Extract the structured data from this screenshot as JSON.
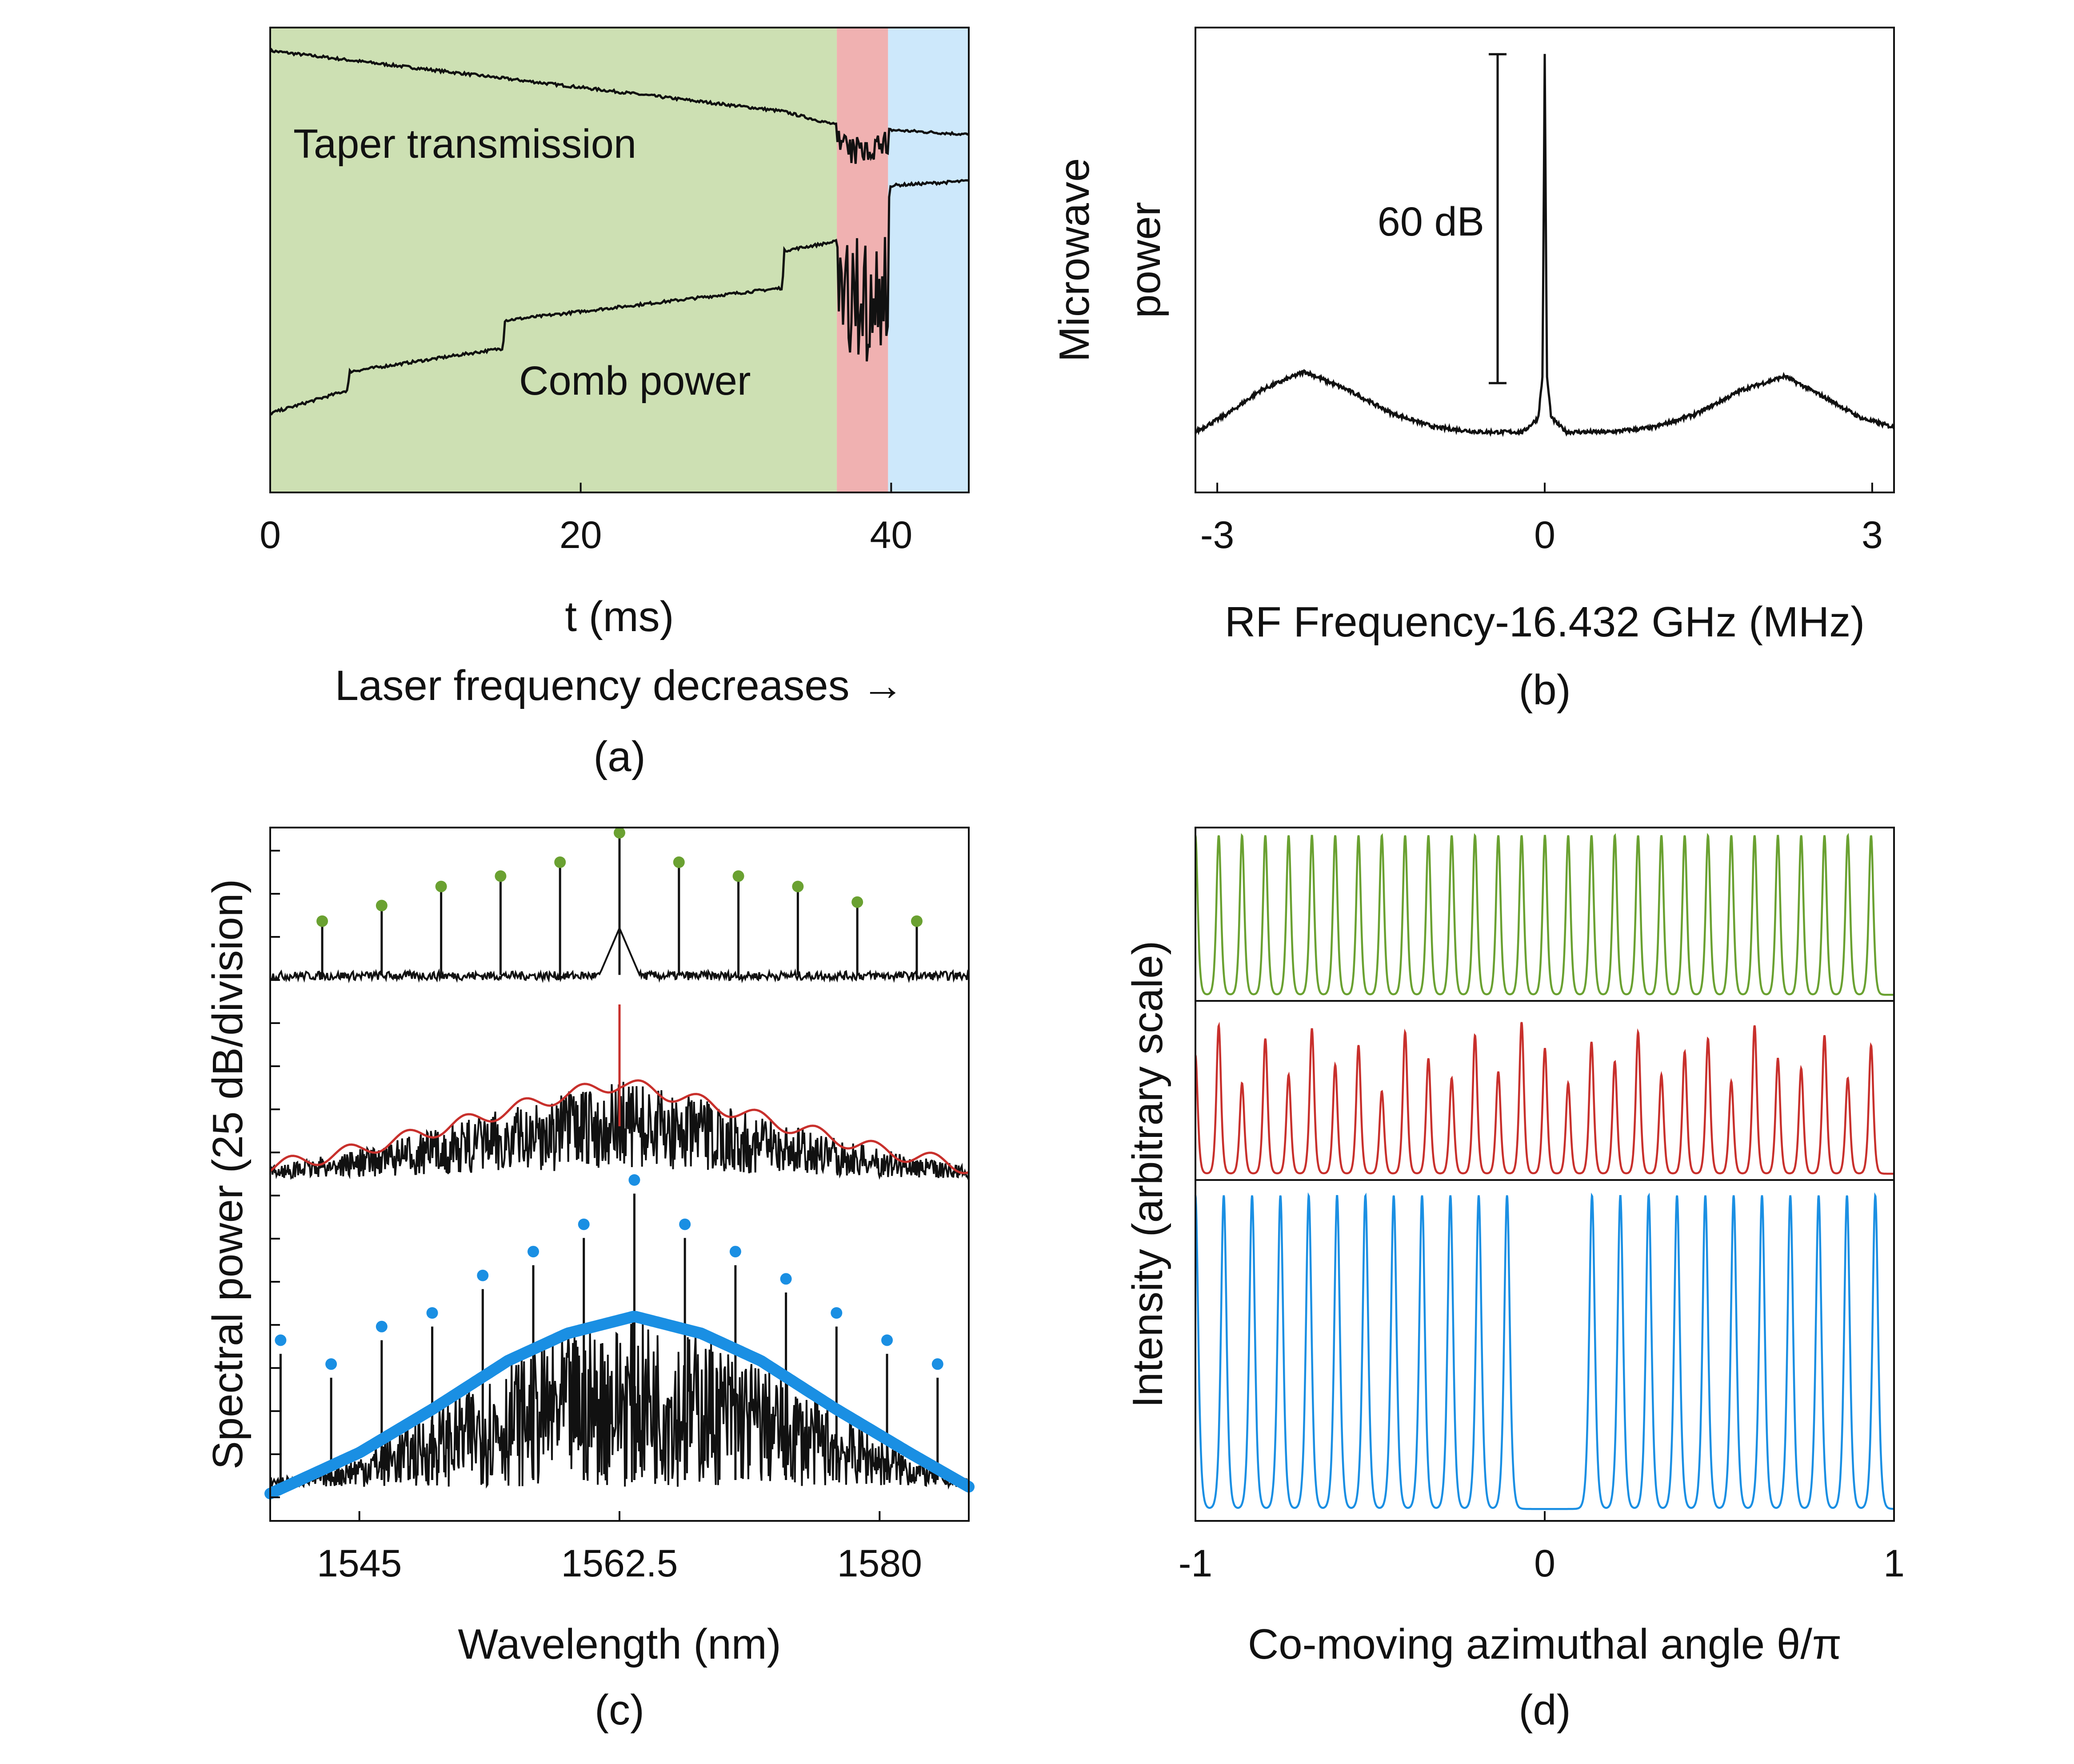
{
  "colors": {
    "green": "#6aa131",
    "red": "#c8302c",
    "blue": "#1a8fe3",
    "black": "#111111",
    "band_green": "#cde0b3",
    "band_red": "#f0b1b1",
    "band_blue": "#cde8fb"
  },
  "chart_data": [
    {
      "id": "a",
      "type": "line",
      "caption": "(a)",
      "xlabel": "t (ms)",
      "xlabel2": "Laser frequency decreases →",
      "ylabel": "",
      "xlim": [
        0,
        45
      ],
      "xticks": [
        0,
        20,
        40
      ],
      "tick_labels": [
        "0",
        "20",
        "40"
      ],
      "regions": [
        {
          "x": [
            0,
            36.5
          ],
          "color": "band_green"
        },
        {
          "x": [
            36.5,
            39.8
          ],
          "color": "band_red"
        },
        {
          "x": [
            39.8,
            45
          ],
          "color": "band_blue"
        }
      ],
      "series": [
        {
          "name": "Taper transmission",
          "x": [
            0,
            33,
            36.5,
            37.5,
            38.5,
            39.8,
            45
          ],
          "y": [
            0.95,
            0.82,
            0.79,
            0.76,
            0.77,
            0.78,
            0.77
          ]
        },
        {
          "name": "Comb power",
          "x": [
            0,
            5,
            5.1,
            15,
            15.1,
            33,
            33.1,
            36.5,
            39.8,
            39.9,
            45
          ],
          "y": [
            0.17,
            0.22,
            0.26,
            0.31,
            0.37,
            0.44,
            0.52,
            0.54,
            0.58,
            0.66,
            0.67
          ]
        }
      ]
    },
    {
      "id": "b",
      "type": "line",
      "caption": "(b)",
      "xlabel": "RF Frequency-16.432 GHz (MHz)",
      "ylabel": "Microwave power",
      "ylabel_lines": [
        "Microwave",
        "power"
      ],
      "xlim": [
        -3.2,
        3.2
      ],
      "xticks": [
        -3,
        0,
        3
      ],
      "tick_labels": [
        "-3",
        "0",
        "3"
      ],
      "annotation": "60 dB",
      "series": [
        {
          "name": "",
          "x": [
            -3.2,
            -2.9,
            -2.6,
            -2.2,
            -1.8,
            -1.4,
            -1.0,
            -0.6,
            -0.2,
            -0.06,
            -0.02,
            0,
            0.02,
            0.06,
            0.2,
            0.6,
            1.0,
            1.4,
            1.8,
            2.2,
            2.6,
            2.9,
            3.2
          ],
          "y": [
            0.13,
            0.17,
            0.22,
            0.26,
            0.22,
            0.17,
            0.14,
            0.13,
            0.13,
            0.16,
            0.25,
            0.94,
            0.25,
            0.16,
            0.13,
            0.13,
            0.14,
            0.17,
            0.22,
            0.25,
            0.2,
            0.16,
            0.14
          ]
        }
      ]
    },
    {
      "id": "c",
      "type": "line",
      "caption": "(c)",
      "xlabel": "Wavelength (nm)",
      "ylabel": "Spectral power (25 dB/division)",
      "xlim": [
        1539,
        1586
      ],
      "xticks": [
        1545,
        1562.5,
        1580
      ],
      "tick_labels": [
        "1545",
        "1562.5",
        "1580"
      ],
      "series": [
        {
          "name": "",
          "color": "green",
          "marker": "dot",
          "x": [
            1542.5,
            1546.5,
            1550.5,
            1554.5,
            1558.5,
            1562.5,
            1566.5,
            1570.5,
            1574.5,
            1578.5,
            1582.5
          ],
          "y": [
            0.46,
            0.55,
            0.66,
            0.72,
            0.8,
            0.97,
            0.8,
            0.72,
            0.66,
            0.57,
            0.46
          ]
        },
        {
          "name": "",
          "color": "red",
          "marker": "none",
          "x": [
            1539,
            1545,
            1550,
            1555,
            1558.5,
            1562.5,
            1566.5,
            1570,
            1575,
            1580,
            1586
          ],
          "y": [
            0.12,
            0.28,
            0.46,
            0.65,
            0.78,
            0.9,
            0.78,
            0.65,
            0.46,
            0.28,
            0.12
          ]
        },
        {
          "name": "",
          "color": "blue",
          "marker": "dot",
          "x": [
            1539.7,
            1543.1,
            1546.5,
            1549.9,
            1553.3,
            1556.7,
            1560.1,
            1563.5,
            1566.9,
            1570.3,
            1573.7,
            1577.1,
            1580.5,
            1583.9
          ],
          "y": [
            0.53,
            0.46,
            0.57,
            0.61,
            0.72,
            0.79,
            0.87,
            1.0,
            0.87,
            0.79,
            0.71,
            0.61,
            0.53,
            0.46
          ]
        },
        {
          "name": "",
          "color": "blue",
          "marker": "envelope",
          "x": [
            1539,
            1545,
            1550,
            1555,
            1559,
            1563.5,
            1568,
            1572,
            1577,
            1582,
            1586
          ],
          "y": [
            0.08,
            0.2,
            0.33,
            0.47,
            0.55,
            0.6,
            0.55,
            0.47,
            0.33,
            0.2,
            0.1
          ]
        }
      ]
    },
    {
      "id": "d",
      "type": "line",
      "caption": "(d)",
      "xlabel": "Co-moving azimuthal angle θ/π",
      "ylabel": "Intensity (arbitrary scale)",
      "xlim": [
        -1,
        1
      ],
      "xticks": [
        -1,
        0,
        1
      ],
      "tick_labels": [
        "-1",
        "0",
        "1"
      ],
      "series": [
        {
          "name": "",
          "color": "green",
          "pulse_period": 0.0667,
          "pulse_heights": [
            1.0
          ]
        },
        {
          "name": "",
          "color": "red",
          "pulse_period": 0.0667,
          "pulse_heights": [
            0.72,
            0.9,
            0.55,
            0.82,
            0.6,
            0.88,
            0.66,
            0.78,
            0.5,
            0.86,
            0.7,
            0.58,
            0.84,
            0.62,
            0.92,
            0.76,
            0.55,
            0.8,
            0.68,
            0.86,
            0.6,
            0.74,
            0.82,
            0.56,
            0.9,
            0.7,
            0.64,
            0.84,
            0.58,
            0.78
          ]
        },
        {
          "name": "",
          "color": "blue",
          "pulse_period": 0.0811,
          "gap": [
            -0.08,
            0.08
          ],
          "pulse_heights": [
            1.0
          ]
        }
      ]
    }
  ]
}
